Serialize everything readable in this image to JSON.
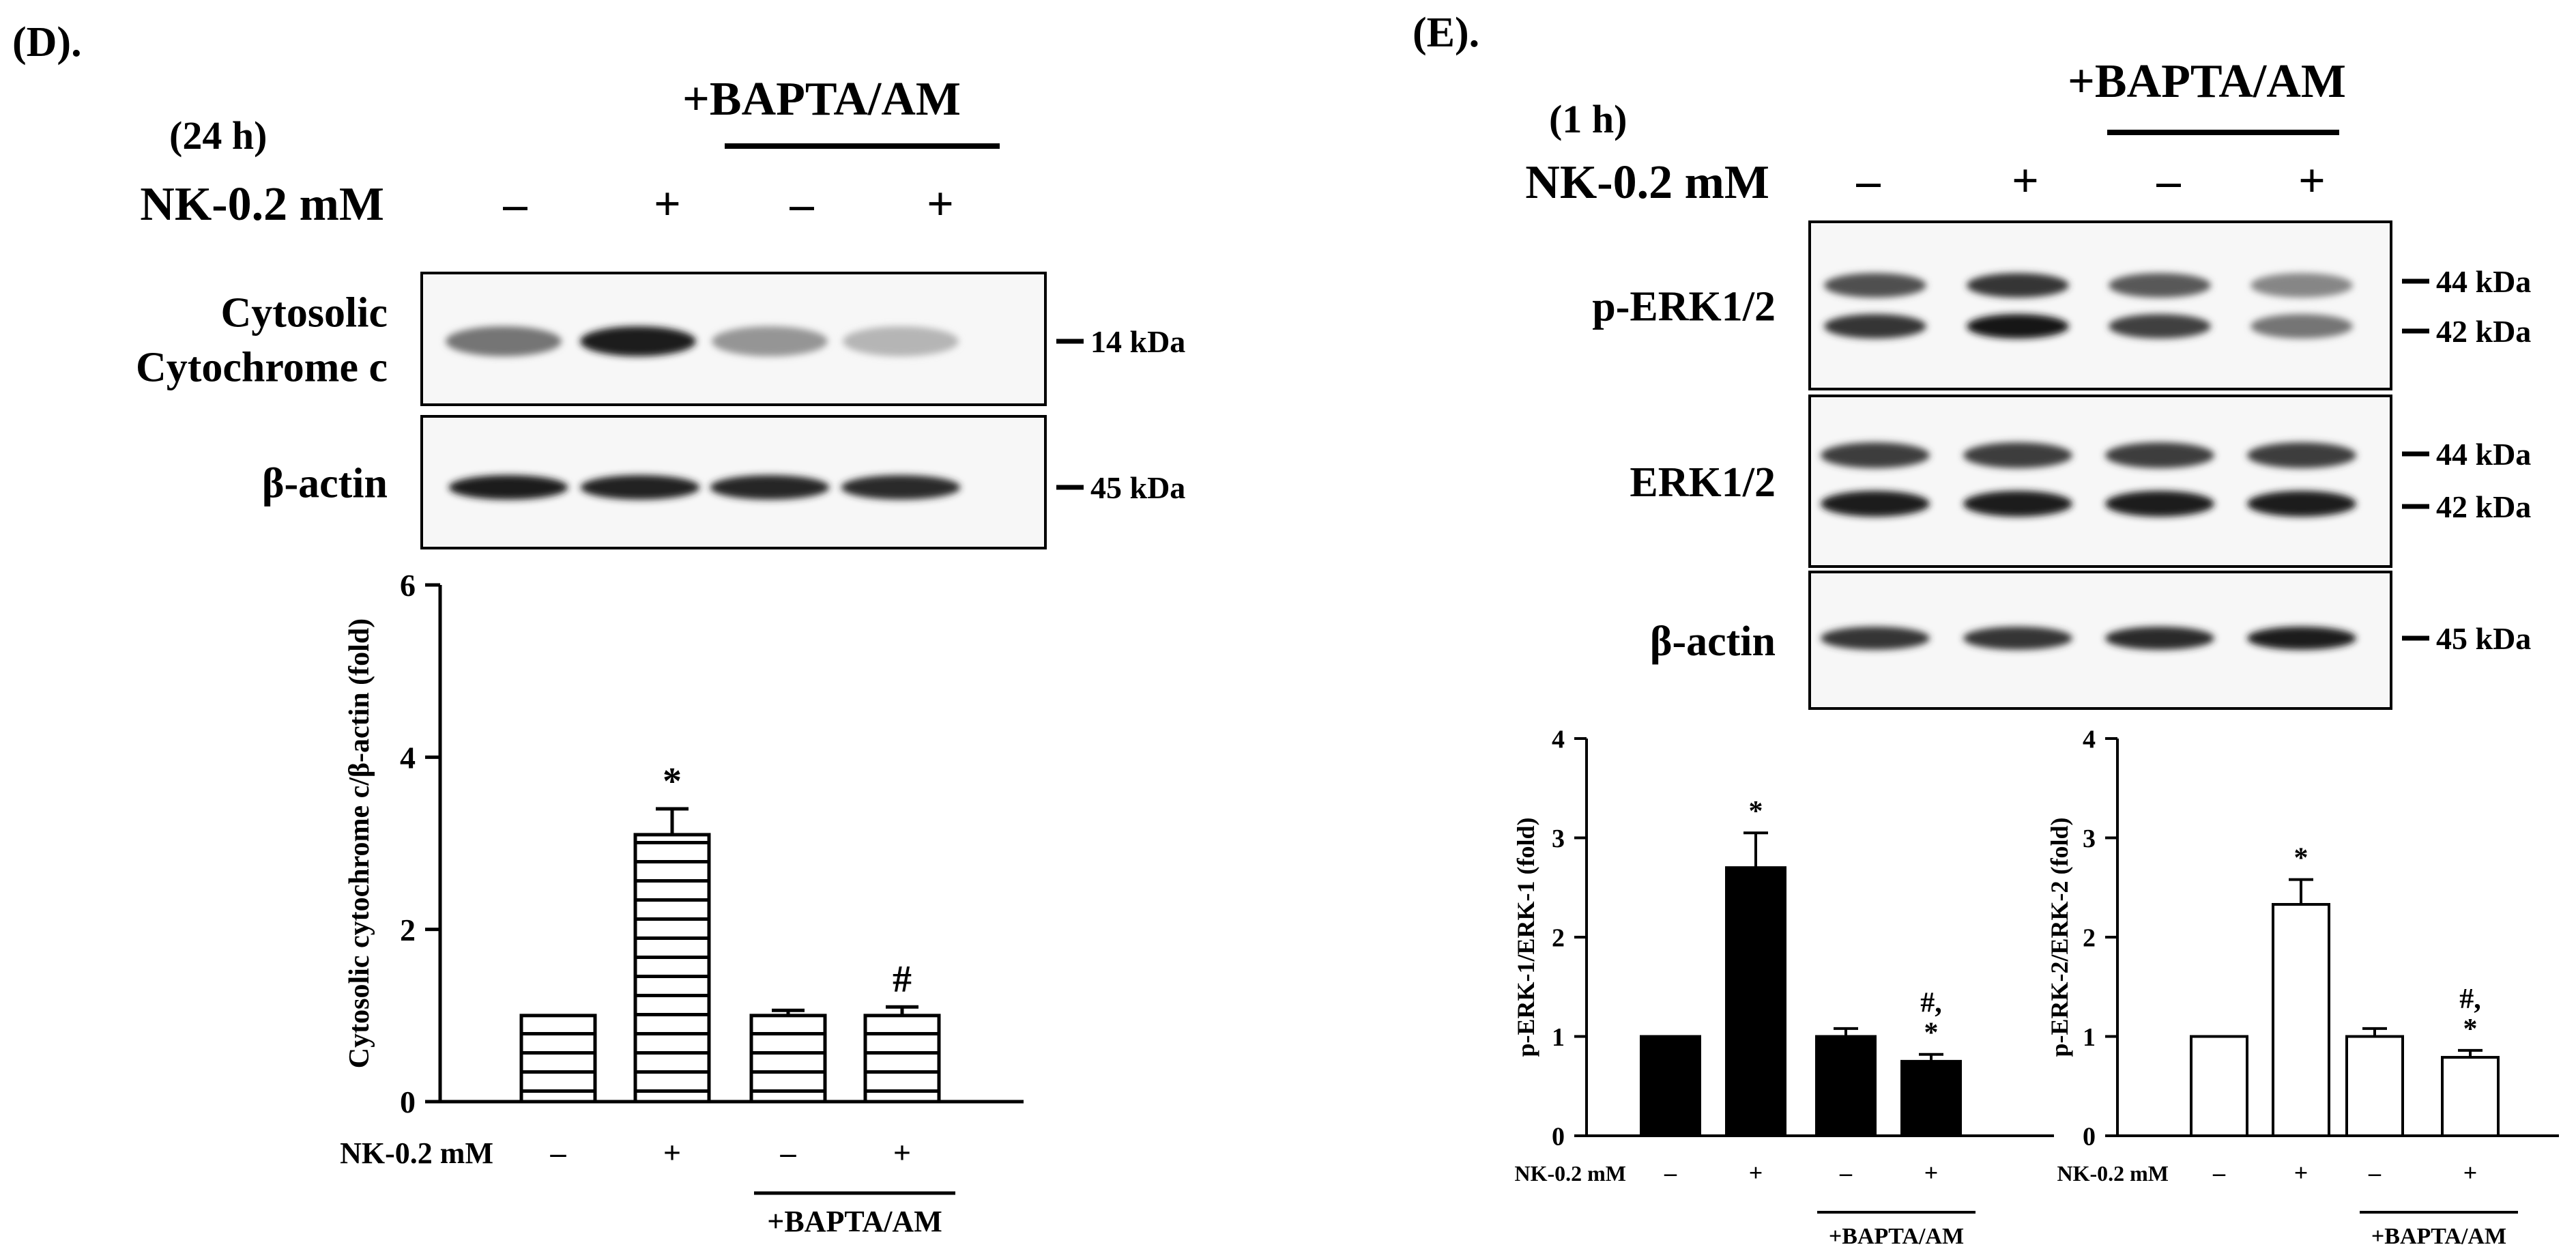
{
  "panel_d": {
    "label": "(D).",
    "time": "(24 h)",
    "bapta_header": "+BAPTA/AM",
    "nk_label": "NK-0.2 mM",
    "lanes": [
      "–",
      "+",
      "–",
      "+"
    ],
    "blots": [
      {
        "label_lines": [
          "Cytosolic",
          "Cytochrome c"
        ],
        "kda": [
          "14 kDa"
        ],
        "intensities": [
          0.55,
          0.95,
          0.4,
          0.25
        ]
      },
      {
        "label_lines": [
          "β-actin"
        ],
        "kda": [
          "45 kDa"
        ],
        "intensities": [
          0.95,
          0.93,
          0.92,
          0.9
        ]
      }
    ]
  },
  "panel_e": {
    "label": "(E).",
    "time": "(1 h)",
    "bapta_header": "+BAPTA/AM",
    "nk_label": "NK-0.2 mM",
    "lanes": [
      "–",
      "+",
      "–",
      "+"
    ],
    "blots": [
      {
        "label_lines": [
          "p-ERK1/2"
        ],
        "kda": [
          "44 kDa",
          "42 kDa"
        ],
        "intensities": [
          0.85,
          1.0,
          0.8,
          0.55
        ]
      },
      {
        "label_lines": [
          "ERK1/2"
        ],
        "kda": [
          "44 kDa",
          "42 kDa"
        ],
        "intensities": [
          0.95,
          0.95,
          0.95,
          0.95
        ]
      },
      {
        "label_lines": [
          "β-actin"
        ],
        "kda": [
          "45 kDa"
        ],
        "intensities": [
          0.85,
          0.85,
          0.9,
          0.95
        ]
      }
    ]
  },
  "chart_data": [
    {
      "type": "bar",
      "panel": "D",
      "ylabel": "Cytosolic cytochrome c/β-actin (fold)",
      "ylim": [
        0,
        6
      ],
      "yticks": [
        "0",
        "2",
        "4",
        "6"
      ],
      "x_treatment_label": "NK-0.2 mM",
      "categories": [
        "–",
        "+",
        "–",
        "+"
      ],
      "group_label": "+BAPTA/AM",
      "values": [
        1.0,
        3.1,
        1.0,
        1.0
      ],
      "errors": [
        0.0,
        0.3,
        0.06,
        0.1
      ],
      "annotations": [
        [],
        [
          "*"
        ],
        [],
        [
          "#"
        ]
      ],
      "fill": "horizontal-stripes"
    },
    {
      "type": "bar",
      "panel": "E-left",
      "ylabel": "p-ERK-1/ERK-1 (fold)",
      "ylim": [
        0,
        4
      ],
      "yticks": [
        "0",
        "1",
        "2",
        "3",
        "4"
      ],
      "x_treatment_label": "NK-0.2 mM",
      "categories": [
        "–",
        "+",
        "–",
        "+"
      ],
      "group_label": "+BAPTA/AM",
      "values": [
        1.0,
        2.7,
        1.0,
        0.75
      ],
      "errors": [
        0.0,
        0.35,
        0.08,
        0.07
      ],
      "annotations": [
        [],
        [
          "*"
        ],
        [],
        [
          "#,",
          "*"
        ]
      ],
      "fill": "#000000"
    },
    {
      "type": "bar",
      "panel": "E-right",
      "ylabel": "p-ERK-2/ERK-2 (fold)",
      "ylim": [
        0,
        4
      ],
      "yticks": [
        "0",
        "1",
        "2",
        "3",
        "4"
      ],
      "x_treatment_label": "NK-0.2 mM",
      "categories": [
        "–",
        "+",
        "–",
        "+"
      ],
      "group_label": "+BAPTA/AM",
      "values": [
        1.0,
        2.33,
        1.0,
        0.79
      ],
      "errors": [
        0.0,
        0.25,
        0.08,
        0.07
      ],
      "annotations": [
        [],
        [
          "*"
        ],
        [],
        [
          "#,",
          "*"
        ]
      ],
      "fill": "#ffffff"
    }
  ]
}
